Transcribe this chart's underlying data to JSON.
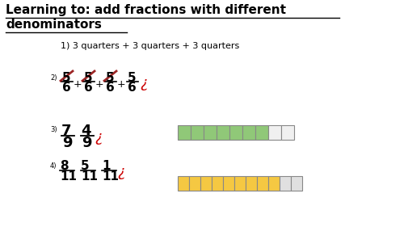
{
  "title_line1": "Learning to: add fractions with different",
  "title_line2": "denominators",
  "background_color": "#ffffff",
  "q1_text": "1) 3 quarters + 3 quarters + 3 quarters",
  "q2_label": "2)",
  "q3_label": "3)",
  "q3_fraction1_num": "7",
  "q3_fraction1_den": "9",
  "q3_fraction2_num": "4",
  "q3_fraction2_den": "9",
  "q3_bar_total": 9,
  "q3_bar_filled": 7,
  "q3_bar_color": "#90c878",
  "q3_bar_empty_color": "#f0f0f0",
  "q4_label": "4)",
  "q4_fraction1_num": "8",
  "q4_fraction1_den": "11",
  "q4_fraction2_num": "5",
  "q4_fraction2_den": "11",
  "q4_fraction3_num": "1",
  "q4_fraction3_den": "11",
  "q4_bar_total": 11,
  "q4_bar_filled": 9,
  "q4_bar_color": "#f5c842",
  "q4_bar_empty_color": "#e0e0e0",
  "red_color": "#cc0000",
  "dark_red": "#8b0000",
  "black": "#000000"
}
